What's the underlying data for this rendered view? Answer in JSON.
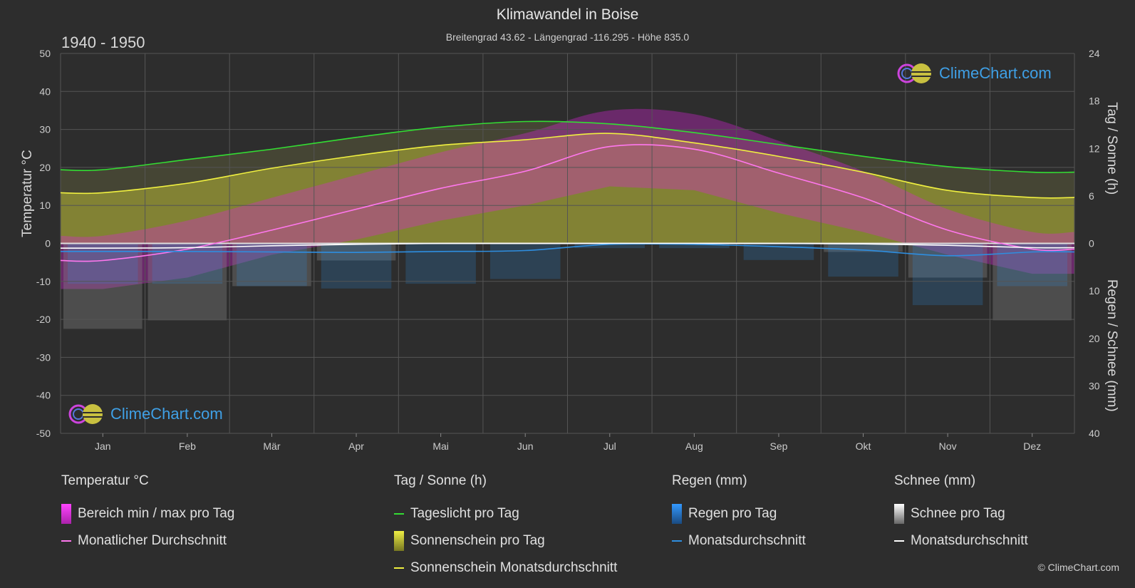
{
  "header": {
    "title": "Klimawandel in Boise",
    "subtitle": "Breitengrad 43.62 - Längengrad -116.295 - Höhe 835.0",
    "period": "1940 - 1950"
  },
  "logo": {
    "text": "ClimeChart.com"
  },
  "copyright": "© ClimeChart.com",
  "colors": {
    "background": "#2d2d2d",
    "daylight": "#33dd33",
    "sunshine_avg": "#f0f040",
    "sunshine_fill": "#b5b535",
    "temp_avg": "#ff77ee",
    "temp_range": "#dd22dd",
    "rain": "#2e8ee0",
    "snow_avg": "#ffffff",
    "snow_bar": "#8a8a8a",
    "logo_text": "#3fa0e6"
  },
  "legend": {
    "temp": {
      "heading": "Temperatur °C",
      "items": [
        "Bereich min / max pro Tag",
        "Monatlicher Durchschnitt"
      ]
    },
    "sun": {
      "heading": "Tag / Sonne (h)",
      "items": [
        "Tageslicht pro Tag",
        "Sonnenschein pro Tag",
        "Sonnenschein Monatsdurchschnitt"
      ]
    },
    "rain": {
      "heading": "Regen (mm)",
      "items": [
        "Regen pro Tag",
        "Monatsdurchschnitt"
      ]
    },
    "snow": {
      "heading": "Schnee (mm)",
      "items": [
        "Schnee pro Tag",
        "Monatsdurchschnitt"
      ]
    }
  },
  "chart_data": {
    "type": "line",
    "categories": [
      "Jan",
      "Feb",
      "Mär",
      "Apr",
      "Mai",
      "Jun",
      "Jul",
      "Aug",
      "Sep",
      "Okt",
      "Nov",
      "Dez"
    ],
    "left_axis": {
      "label": "Temperatur °C",
      "range": [
        -50,
        50
      ],
      "ticks": [
        50,
        40,
        30,
        20,
        10,
        0,
        -10,
        -20,
        -30,
        -40,
        -50
      ]
    },
    "right_axis_top": {
      "label": "Tag / Sonne (h)",
      "range": [
        0,
        24
      ],
      "ticks": [
        24,
        18,
        12,
        6,
        0
      ]
    },
    "right_axis_bottom": {
      "label": "Regen / Schnee (mm)",
      "range": [
        0,
        40
      ],
      "ticks": [
        0,
        10,
        20,
        30,
        40
      ]
    },
    "grid": true,
    "series": [
      {
        "name": "Tageslicht pro Tag",
        "axis": "sun_hours",
        "values": [
          9.3,
          10.6,
          11.9,
          13.4,
          14.7,
          15.4,
          15.1,
          14.0,
          12.5,
          11.0,
          9.7,
          9.0
        ]
      },
      {
        "name": "Sonnenschein Monatsdurchschnitt",
        "axis": "sun_hours",
        "values": [
          6.4,
          7.6,
          9.5,
          11.1,
          12.4,
          13.1,
          13.9,
          12.7,
          11.0,
          9.0,
          6.7,
          5.8
        ]
      },
      {
        "name": "Monatlicher Durchschnitt",
        "axis": "temperature",
        "values": [
          -4.5,
          -1.5,
          3.5,
          9.0,
          14.5,
          19.0,
          25.5,
          24.8,
          18.5,
          12.0,
          3.5,
          -1.5
        ]
      },
      {
        "name": "Regen Monatsdurchschnitt",
        "axis": "rain_mm",
        "values": [
          1.7,
          1.7,
          1.8,
          1.9,
          1.7,
          1.5,
          0.2,
          0.2,
          0.7,
          1.4,
          2.6,
          1.8
        ]
      },
      {
        "name": "Schnee Monatsdurchschnitt",
        "axis": "snow_mm",
        "values": [
          1.0,
          0.9,
          0.5,
          0.2,
          0.0,
          0.0,
          0.0,
          0.0,
          0.0,
          0.1,
          0.4,
          0.9
        ]
      },
      {
        "name": "Bereich min / max pro Tag (max)",
        "axis": "temperature",
        "values": [
          2,
          6,
          12,
          18,
          24,
          29,
          35,
          34,
          27,
          19,
          9,
          3
        ]
      },
      {
        "name": "Bereich min / max pro Tag (min)",
        "axis": "temperature",
        "values": [
          -12,
          -9,
          -3,
          1,
          6,
          10,
          15,
          14,
          8,
          3,
          -3,
          -8
        ]
      }
    ]
  }
}
